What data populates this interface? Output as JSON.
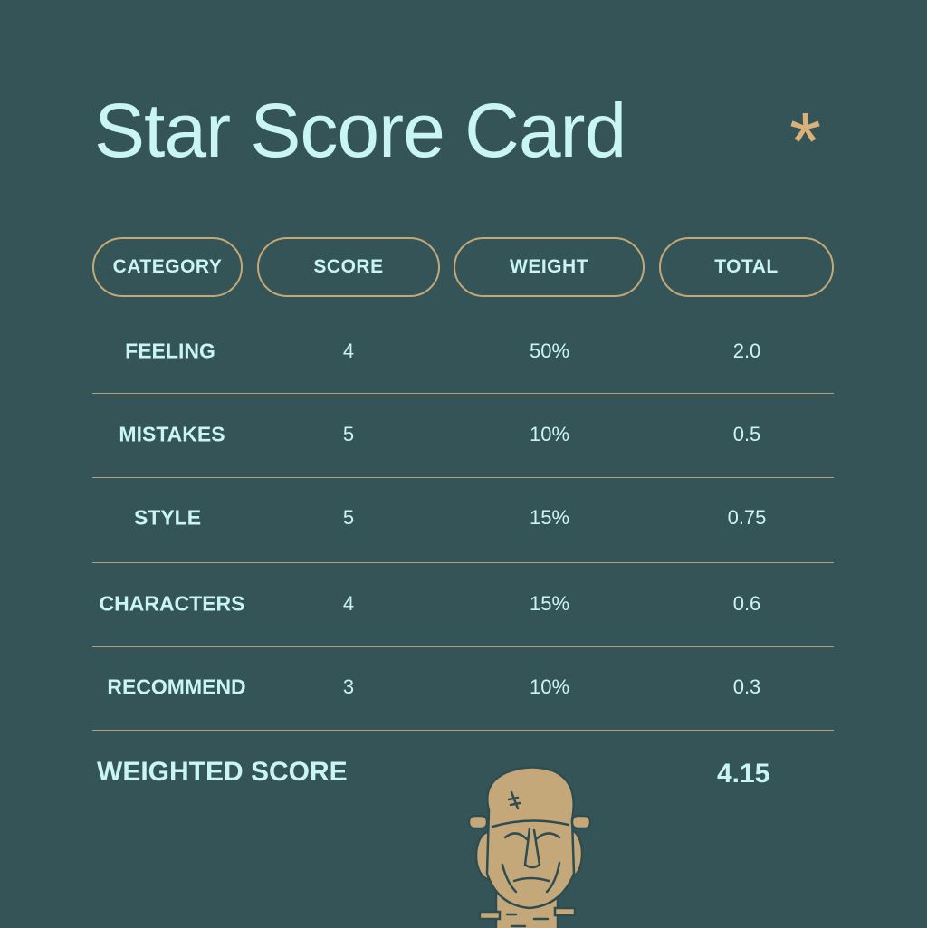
{
  "title": "Star Score Card",
  "accent_icon": "asterisk-icon",
  "colors": {
    "background": "#355457",
    "text": "#c9f5f5",
    "accent": "#c2a878"
  },
  "headers": [
    "CATEGORY",
    "SCORE",
    "WEIGHT",
    "TOTAL"
  ],
  "rows": [
    {
      "category": "FEELING",
      "score": "4",
      "weight": "50%",
      "total": "2.0"
    },
    {
      "category": "MISTAKES",
      "score": "5",
      "weight": "10%",
      "total": "0.5"
    },
    {
      "category": "STYLE",
      "score": "5",
      "weight": "15%",
      "total": "0.75"
    },
    {
      "category": "CHARACTERS",
      "score": "4",
      "weight": "15%",
      "total": "0.6"
    },
    {
      "category": "RECOMMEND",
      "score": "3",
      "weight": "10%",
      "total": "0.3"
    }
  ],
  "weighted_score": {
    "label": "WEIGHTED SCORE",
    "value": "4.15"
  },
  "illustration": "frankenstein-monster-head"
}
